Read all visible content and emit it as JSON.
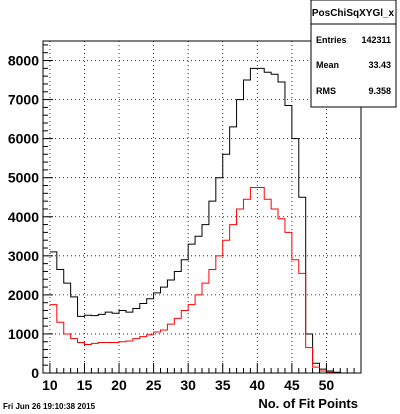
{
  "chart_data": {
    "type": "histogram",
    "x_edges_start": 10,
    "bin_width": 1,
    "xlim": [
      9,
      55
    ],
    "ylim": [
      0,
      8500
    ],
    "grid": true,
    "xlabel": "No. of Fit Points",
    "x_ticks": [
      10,
      15,
      20,
      25,
      30,
      35,
      40,
      45,
      50
    ],
    "y_ticks": [
      0,
      1000,
      2000,
      3000,
      4000,
      5000,
      6000,
      7000,
      8000
    ],
    "series": [
      {
        "color": "#000000",
        "values": [
          3100,
          2650,
          2300,
          1950,
          1450,
          1480,
          1470,
          1500,
          1560,
          1530,
          1600,
          1560,
          1650,
          1780,
          1900,
          2050,
          2200,
          2380,
          2600,
          2900,
          3300,
          3500,
          3800,
          4400,
          5000,
          5600,
          6300,
          7000,
          7500,
          7800,
          7800,
          7700,
          7650,
          7450,
          6850,
          6000,
          4500,
          1000,
          250,
          100,
          50,
          20,
          0,
          0,
          0
        ]
      },
      {
        "color": "#ff0000",
        "values": [
          1750,
          1300,
          1000,
          880,
          780,
          730,
          760,
          780,
          780,
          780,
          800,
          820,
          880,
          930,
          980,
          1050,
          1100,
          1250,
          1400,
          1600,
          1750,
          2000,
          2300,
          2650,
          3000,
          3400,
          3800,
          4200,
          4450,
          4750,
          4750,
          4450,
          4200,
          3950,
          3600,
          2900,
          2550,
          650,
          150,
          50,
          20,
          0,
          0,
          0,
          0
        ]
      }
    ]
  },
  "stats_box": {
    "title": "PosChiSqXYGl_x",
    "entries_label": "Entries",
    "entries_value": "142311",
    "mean_label": "Mean",
    "mean_value": "33.43",
    "rms_label": "RMS",
    "rms_value": "9.358"
  },
  "timestamp": "Fri Jun 26 19:10:38 2015"
}
